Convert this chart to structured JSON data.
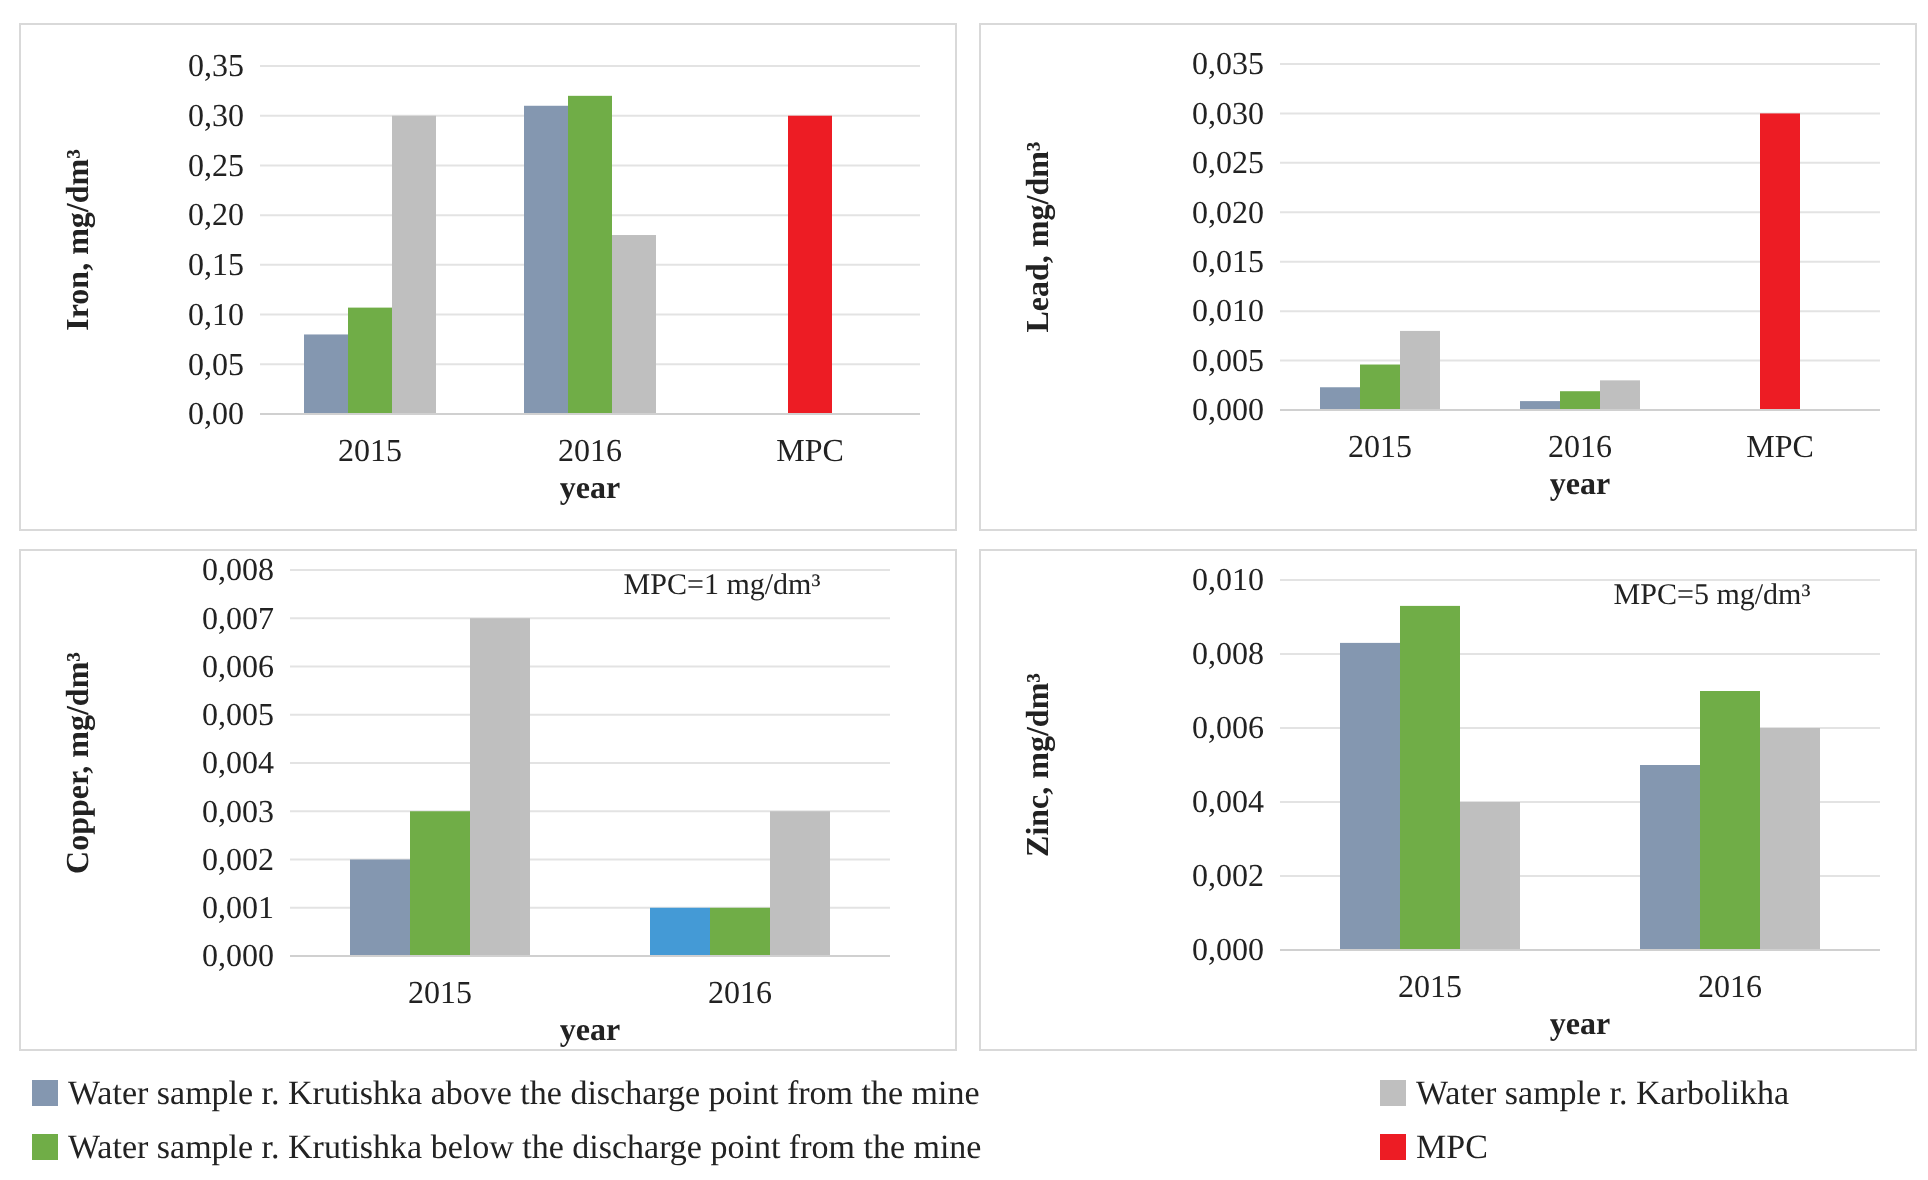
{
  "chart_data": [
    {
      "type": "bar",
      "categories": [
        "2015",
        "2016",
        "MPC"
      ],
      "xlabel": "year",
      "ylabel": "Iron, mg/dm³",
      "ylim": [
        0,
        0.35
      ],
      "yticks": [
        {
          "value": 0,
          "label": "0,00"
        },
        {
          "value": 0.05,
          "label": "0,05"
        },
        {
          "value": 0.1,
          "label": "0,10"
        },
        {
          "value": 0.15,
          "label": "0,15"
        },
        {
          "value": 0.2,
          "label": "0,20"
        },
        {
          "value": 0.25,
          "label": "0,25"
        },
        {
          "value": 0.3,
          "label": "0,30"
        },
        {
          "value": 0.35,
          "label": "0,35"
        }
      ],
      "grid": "y",
      "legend": "bottom",
      "series": [
        {
          "name": "Water sample r. Krutishka above the discharge point from the mine",
          "color": "#8497b0",
          "values": [
            0.08,
            0.31,
            null
          ]
        },
        {
          "name": "Water sample r. Krutishka below the discharge point from the mine",
          "color": "#70ad47",
          "values": [
            0.107,
            0.32,
            null
          ]
        },
        {
          "name": "Water sample r. Karbolikha",
          "color": "#bfbfbf",
          "values": [
            0.3,
            0.18,
            null
          ]
        },
        {
          "name": "MPC",
          "color": "#ed1c24",
          "values": [
            null,
            null,
            0.3
          ]
        }
      ]
    },
    {
      "type": "bar",
      "categories": [
        "2015",
        "2016",
        "MPC"
      ],
      "xlabel": "year",
      "ylabel": "Lead, mg/dm³",
      "ylim": [
        0,
        0.035
      ],
      "yticks": [
        {
          "value": 0,
          "label": "0,000"
        },
        {
          "value": 0.005,
          "label": "0,005"
        },
        {
          "value": 0.01,
          "label": "0,010"
        },
        {
          "value": 0.015,
          "label": "0,015"
        },
        {
          "value": 0.02,
          "label": "0,020"
        },
        {
          "value": 0.025,
          "label": "0,025"
        },
        {
          "value": 0.03,
          "label": "0,030"
        },
        {
          "value": 0.035,
          "label": "0,035"
        }
      ],
      "grid": "y",
      "legend": "bottom",
      "series": [
        {
          "name": "Water sample r. Krutishka above the discharge point from the mine",
          "color": "#8497b0",
          "values": [
            0.0023,
            0.0009,
            null
          ]
        },
        {
          "name": "Water sample r. Krutishka below the discharge point from the mine",
          "color": "#70ad47",
          "values": [
            0.0046,
            0.0019,
            null
          ]
        },
        {
          "name": "Water sample r. Karbolikha",
          "color": "#bfbfbf",
          "values": [
            0.008,
            0.003,
            null
          ]
        },
        {
          "name": "MPC",
          "color": "#ed1c24",
          "values": [
            null,
            null,
            0.03
          ]
        }
      ]
    },
    {
      "type": "bar",
      "categories": [
        "2015",
        "2016"
      ],
      "xlabel": "year",
      "ylabel": "Copper, mg/dm³",
      "annotations": [
        "MPC=1 mg/dm³"
      ],
      "ylim": [
        0,
        0.008
      ],
      "yticks": [
        {
          "value": 0,
          "label": "0,000"
        },
        {
          "value": 0.001,
          "label": "0,001"
        },
        {
          "value": 0.002,
          "label": "0,002"
        },
        {
          "value": 0.003,
          "label": "0,003"
        },
        {
          "value": 0.004,
          "label": "0,004"
        },
        {
          "value": 0.005,
          "label": "0,005"
        },
        {
          "value": 0.006,
          "label": "0,006"
        },
        {
          "value": 0.007,
          "label": "0,007"
        },
        {
          "value": 0.008,
          "label": "0,008"
        }
      ],
      "grid": "y",
      "legend": "bottom",
      "series": [
        {
          "name": "Water sample r. Krutishka above the discharge point from the mine",
          "color": "#8497b0",
          "colors": [
            null,
            "#449ad6"
          ],
          "values": [
            0.002,
            0.001
          ]
        },
        {
          "name": "Water sample r. Krutishka below the discharge point from the mine",
          "color": "#70ad47",
          "values": [
            0.003,
            0.001
          ]
        },
        {
          "name": "Water sample r. Karbolikha",
          "color": "#bfbfbf",
          "values": [
            0.007,
            0.003
          ]
        }
      ]
    },
    {
      "type": "bar",
      "categories": [
        "2015",
        "2016"
      ],
      "xlabel": "year",
      "ylabel": "Zinc, mg/dm³",
      "annotations": [
        "MPC=5 mg/dm³"
      ],
      "ylim": [
        0,
        0.01
      ],
      "yticks": [
        {
          "value": 0,
          "label": "0,000"
        },
        {
          "value": 0.002,
          "label": "0,002"
        },
        {
          "value": 0.004,
          "label": "0,004"
        },
        {
          "value": 0.006,
          "label": "0,006"
        },
        {
          "value": 0.008,
          "label": "0,008"
        },
        {
          "value": 0.01,
          "label": "0,010"
        }
      ],
      "grid": "y",
      "legend": "bottom",
      "series": [
        {
          "name": "Water sample r. Krutishka above the discharge point from the mine",
          "color": "#8497b0",
          "values": [
            0.0083,
            0.005
          ]
        },
        {
          "name": "Water sample r. Krutishka below the discharge point from the mine",
          "color": "#70ad47",
          "values": [
            0.0093,
            0.007
          ]
        },
        {
          "name": "Water sample r. Karbolikha",
          "color": "#bfbfbf",
          "values": [
            0.004,
            0.006
          ]
        }
      ]
    }
  ]
}
